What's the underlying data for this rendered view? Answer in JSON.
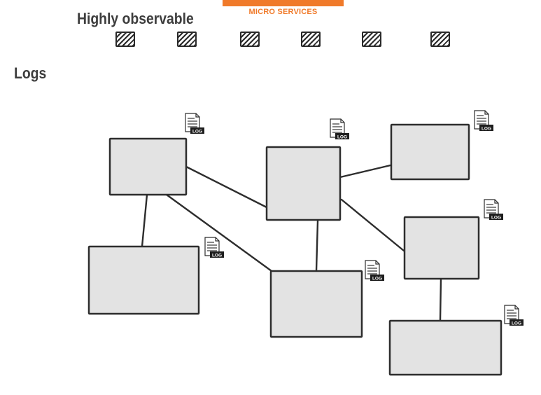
{
  "banner": {
    "label": "MICRO SERVICES",
    "accent_color": "#f07a2a"
  },
  "headings": {
    "primary": "Highly observable",
    "secondary": "Logs"
  },
  "hatch_swatch_count": 6,
  "log_badge_text": "LOG",
  "diagram": {
    "node_ids": [
      "svc-a",
      "svc-b",
      "svc-c",
      "svc-d",
      "svc-e",
      "svc-f",
      "svc-g"
    ],
    "edges": [
      [
        "svc-a",
        "svc-b"
      ],
      [
        "svc-a",
        "svc-d"
      ],
      [
        "svc-a",
        "svc-e"
      ],
      [
        "svc-b",
        "svc-c"
      ],
      [
        "svc-b",
        "svc-e"
      ],
      [
        "svc-b",
        "svc-f"
      ],
      [
        "svc-f",
        "svc-g"
      ]
    ],
    "icon": "log-file-icon"
  }
}
